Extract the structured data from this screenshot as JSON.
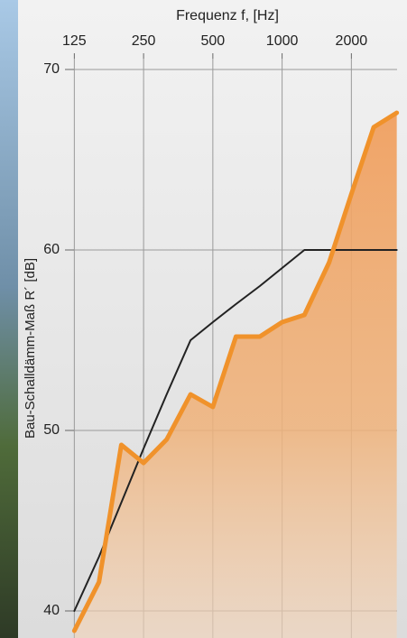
{
  "chart_data": {
    "type": "line",
    "title": "Frequenz f, [Hz]",
    "y_label": "Bau-Schalldämm-Maß R´ [dB]",
    "x": [
      125,
      160,
      200,
      250,
      315,
      400,
      500,
      630,
      800,
      1000,
      1250,
      1600,
      2000,
      2500,
      3150
    ],
    "series": [
      {
        "color": "#f0922b",
        "fill": true,
        "values": [
          38.9,
          41.6,
          49.2,
          48.2,
          49.5,
          52.0,
          51.3,
          55.2,
          55.2,
          56.0,
          56.4,
          59.3,
          63.1,
          66.8,
          67.6
        ]
      },
      {
        "color": "#222222",
        "fill": false,
        "values": [
          40,
          43,
          46,
          49,
          52,
          55,
          56,
          57,
          58,
          59,
          60,
          60,
          60,
          60,
          60
        ]
      }
    ],
    "x_log": true,
    "xlim": [
      104,
      3160
    ],
    "xticks": [
      125,
      250,
      500,
      1000,
      2000
    ],
    "ylim": [
      38.5,
      70.6
    ],
    "yticks": [
      40,
      50,
      60,
      70
    ],
    "grid": true
  }
}
